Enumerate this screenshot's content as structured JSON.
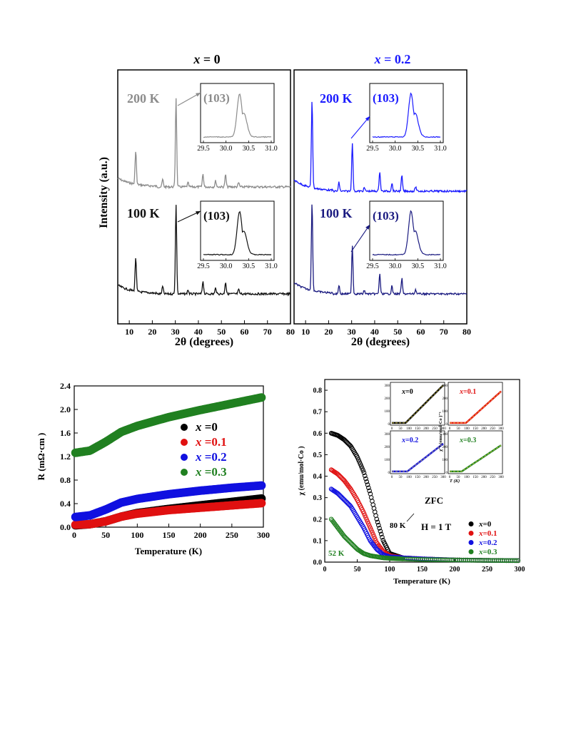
{
  "xrd": {
    "left_title_var": "x",
    "left_title_rest": " = 0",
    "right_title_var": "x",
    "right_title_rest": " = 0.2",
    "ylabel": "Intensity (a.u.)",
    "xlabel": "2θ (degrees)",
    "xticks": [
      "10",
      "20",
      "30",
      "40",
      "50",
      "60",
      "70",
      "80"
    ],
    "label_200K": "200 K",
    "label_100K": "100 K",
    "inset_peak": "(103)",
    "inset_ticks": [
      "29.5",
      "30.0",
      "30.5",
      "31.0"
    ],
    "colors": {
      "left_200K": "#8c8c8c",
      "left_100K": "#111111",
      "right_200K": "#1a1aff",
      "right_100K": "#1a1a80",
      "right_title": "#1a1aff"
    }
  },
  "resistance": {
    "ylabel": "R (mΩ·cm )",
    "xlabel": "Temperature  (K)",
    "yticks": [
      "0.0",
      "0.4",
      "0.8",
      "1.2",
      "1.6",
      "2.0",
      "2.4"
    ],
    "xticks": [
      "0",
      "50",
      "100",
      "150",
      "200",
      "250",
      "300"
    ],
    "legend": [
      {
        "var": "x",
        "text": " =0",
        "color": "#000000"
      },
      {
        "var": "x",
        "text": " =0.1",
        "color": "#e01010"
      },
      {
        "var": "x",
        "text": " =0.2",
        "color": "#1010e0"
      },
      {
        "var": "x",
        "text": " =0.3",
        "color": "#208020"
      }
    ]
  },
  "susceptibility": {
    "ylabel": "χ (emu/mol·Co )",
    "xlabel": "Temperature (K)",
    "yticks": [
      "0.0",
      "0.1",
      "0.2",
      "0.3",
      "0.4",
      "0.5",
      "0.6",
      "0.7",
      "0.8"
    ],
    "xticks": [
      "0",
      "50",
      "100",
      "150",
      "200",
      "250",
      "300"
    ],
    "annot_80K": "80 K",
    "annot_52K": "52 K",
    "zfc": "ZFC",
    "field": "H = 1 T",
    "legend": [
      {
        "var": "x",
        "text": "=0",
        "color": "#000000"
      },
      {
        "var": "x",
        "text": "=0.1",
        "color": "#e01010"
      },
      {
        "var": "x",
        "text": "=0.2",
        "color": "#1010e0"
      },
      {
        "var": "x",
        "text": "=0.3",
        "color": "#208020"
      }
    ],
    "inset_labels": [
      {
        "var": "x",
        "text": "=0",
        "color": "#000000"
      },
      {
        "var": "x",
        "text": "=0.1",
        "color": "#e01010"
      },
      {
        "var": "x",
        "text": "=0.2",
        "color": "#1010e0"
      },
      {
        "var": "x",
        "text": "=0.3",
        "color": "#208020"
      }
    ],
    "inset_ylabel": "χ⁻¹ (emu/mol·Co )⁻¹",
    "inset_xlabel": "T (K)",
    "inset_yticks": [
      "0",
      "100",
      "200",
      "300"
    ],
    "inset_xticks": [
      "0",
      "50",
      "100",
      "150",
      "200",
      "250",
      "300"
    ]
  },
  "chart_data": [
    {
      "type": "line",
      "title": "x = 0",
      "xlabel": "2θ (degrees)",
      "ylabel": "Intensity (a.u.)",
      "xlim": [
        5,
        80
      ],
      "series": [
        {
          "name": "200 K",
          "color": "#8c8c8c",
          "peaks": [
            [
              12.8,
              1.0
            ],
            [
              24.5,
              0.22
            ],
            [
              30.3,
              2.6
            ],
            [
              35.5,
              0.12
            ],
            [
              42.0,
              0.38
            ],
            [
              47.5,
              0.18
            ],
            [
              51.8,
              0.35
            ],
            [
              57.5,
              0.12
            ]
          ]
        },
        {
          "name": "100 K",
          "color": "#111111",
          "peaks": [
            [
              12.8,
              1.0
            ],
            [
              24.5,
              0.22
            ],
            [
              30.3,
              2.6
            ],
            [
              35.5,
              0.12
            ],
            [
              42.0,
              0.38
            ],
            [
              47.5,
              0.18
            ],
            [
              51.8,
              0.35
            ],
            [
              57.5,
              0.12
            ]
          ]
        }
      ],
      "inset": {
        "label": "(103)",
        "xlim": [
          29.5,
          31.0
        ],
        "peak_center": 30.3
      }
    },
    {
      "type": "line",
      "title": "x = 0.2",
      "xlabel": "2θ (degrees)",
      "xlim": [
        5,
        80
      ],
      "series": [
        {
          "name": "200 K",
          "color": "#1a1aff",
          "peaks": [
            [
              12.8,
              2.0
            ],
            [
              24.5,
              0.2
            ],
            [
              30.3,
              1.1
            ],
            [
              35.5,
              0.08
            ],
            [
              42.2,
              0.45
            ],
            [
              47.5,
              0.18
            ],
            [
              51.8,
              0.35
            ],
            [
              57.8,
              0.1
            ]
          ]
        },
        {
          "name": "100 K",
          "color": "#1a1a80",
          "peaks": [
            [
              12.8,
              2.0
            ],
            [
              24.5,
              0.2
            ],
            [
              30.3,
              1.1
            ],
            [
              35.5,
              0.08
            ],
            [
              42.2,
              0.45
            ],
            [
              47.5,
              0.18
            ],
            [
              51.8,
              0.35
            ],
            [
              57.8,
              0.1
            ]
          ]
        }
      ],
      "inset": {
        "label": "(103)",
        "xlim": [
          29.5,
          31.0
        ],
        "peak_center": 30.35
      }
    },
    {
      "type": "scatter",
      "xlabel": "Temperature  (K)",
      "ylabel": "R (mΩ·cm )",
      "xlim": [
        0,
        300
      ],
      "ylim": [
        0,
        2.4
      ],
      "series": [
        {
          "name": "x =0",
          "color": "#000000",
          "x": [
            0,
            25,
            50,
            75,
            100,
            150,
            200,
            250,
            300
          ],
          "y": [
            0.03,
            0.05,
            0.1,
            0.18,
            0.24,
            0.31,
            0.37,
            0.43,
            0.49
          ]
        },
        {
          "name": "x =0.1",
          "color": "#e01010",
          "x": [
            0,
            25,
            50,
            75,
            100,
            150,
            200,
            250,
            300
          ],
          "y": [
            0.04,
            0.05,
            0.1,
            0.18,
            0.23,
            0.29,
            0.33,
            0.37,
            0.41
          ]
        },
        {
          "name": "x =0.2",
          "color": "#1010e0",
          "x": [
            0,
            25,
            50,
            75,
            100,
            150,
            200,
            250,
            300
          ],
          "y": [
            0.17,
            0.2,
            0.3,
            0.42,
            0.48,
            0.56,
            0.62,
            0.67,
            0.71
          ]
        },
        {
          "name": "x =0.3",
          "color": "#208020",
          "x": [
            0,
            25,
            50,
            75,
            100,
            150,
            200,
            250,
            300
          ],
          "y": [
            1.26,
            1.3,
            1.45,
            1.62,
            1.72,
            1.87,
            1.99,
            2.1,
            2.21
          ]
        }
      ]
    },
    {
      "type": "scatter",
      "xlabel": "Temperature (K)",
      "ylabel": "χ (emu/mol·Co )",
      "xlim": [
        0,
        300
      ],
      "ylim": [
        0,
        0.85
      ],
      "series": [
        {
          "name": "x=0",
          "color": "#000000",
          "x": [
            10,
            20,
            30,
            40,
            50,
            60,
            70,
            80,
            90,
            100,
            120,
            150,
            200,
            250,
            300
          ],
          "y": [
            0.6,
            0.59,
            0.57,
            0.54,
            0.49,
            0.42,
            0.32,
            0.2,
            0.1,
            0.04,
            0.02,
            0.015,
            0.01,
            0.008,
            0.007
          ]
        },
        {
          "name": "x=0.1",
          "color": "#e01010",
          "x": [
            10,
            20,
            30,
            40,
            50,
            60,
            70,
            80,
            90,
            100,
            120,
            150,
            200,
            250,
            300
          ],
          "y": [
            0.43,
            0.41,
            0.38,
            0.34,
            0.29,
            0.23,
            0.16,
            0.09,
            0.05,
            0.03,
            0.02,
            0.015,
            0.01,
            0.008,
            0.007
          ]
        },
        {
          "name": "x=0.2",
          "color": "#1010e0",
          "x": [
            10,
            20,
            30,
            40,
            50,
            60,
            70,
            80,
            90,
            100,
            120,
            150,
            200,
            250,
            300
          ],
          "y": [
            0.34,
            0.32,
            0.29,
            0.26,
            0.21,
            0.16,
            0.1,
            0.06,
            0.035,
            0.025,
            0.02,
            0.015,
            0.01,
            0.008,
            0.007
          ]
        },
        {
          "name": "x=0.3",
          "color": "#208020",
          "x": [
            10,
            20,
            30,
            40,
            50,
            60,
            70,
            80,
            90,
            100,
            120,
            150,
            200,
            250,
            300
          ],
          "y": [
            0.2,
            0.16,
            0.12,
            0.09,
            0.06,
            0.04,
            0.03,
            0.025,
            0.02,
            0.018,
            0.015,
            0.012,
            0.01,
            0.008,
            0.007
          ]
        }
      ],
      "annotations": [
        "80 K",
        "52 K",
        "ZFC",
        "H = 1 T"
      ]
    }
  ]
}
